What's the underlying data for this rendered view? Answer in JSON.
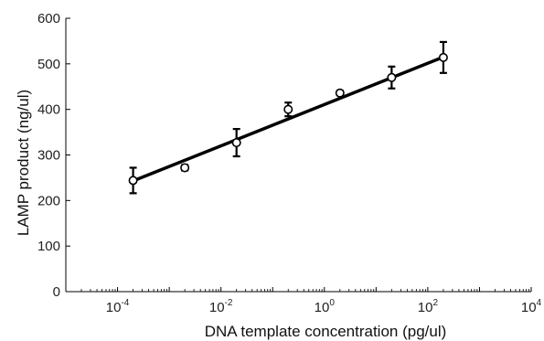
{
  "chart_data": {
    "type": "scatter",
    "title": "",
    "xlabel": "DNA template concentration (pg/ul)",
    "ylabel": "LAMP product (ng/ul)",
    "x_scale": "log",
    "xlim": [
      1e-05,
      10000
    ],
    "ylim": [
      0,
      600
    ],
    "x_major_ticks": [
      0.0001,
      0.01,
      1,
      100,
      10000
    ],
    "x_tick_labels": [
      {
        "base": "10",
        "exp": "-4"
      },
      {
        "base": "10",
        "exp": "-2"
      },
      {
        "base": "10",
        "exp": "0"
      },
      {
        "base": "10",
        "exp": "2"
      },
      {
        "base": "10",
        "exp": "4"
      }
    ],
    "y_ticks": [
      0,
      100,
      200,
      300,
      400,
      500,
      600
    ],
    "y_tick_labels": [
      "0",
      "100",
      "200",
      "300",
      "400",
      "500",
      "600"
    ],
    "grid": false,
    "legend": "none",
    "series": [
      {
        "marker": "circle",
        "color": "#000000",
        "x": [
          0.0002,
          0.002,
          0.02,
          0.2,
          2,
          20,
          200
        ],
        "y": [
          244,
          272,
          327,
          400,
          436,
          470,
          514
        ],
        "error": [
          28,
          6,
          30,
          15,
          5,
          24,
          34
        ]
      }
    ],
    "fit_line": {
      "color": "#000000",
      "x": [
        0.0002,
        200
      ],
      "y": [
        243,
        515
      ]
    }
  }
}
